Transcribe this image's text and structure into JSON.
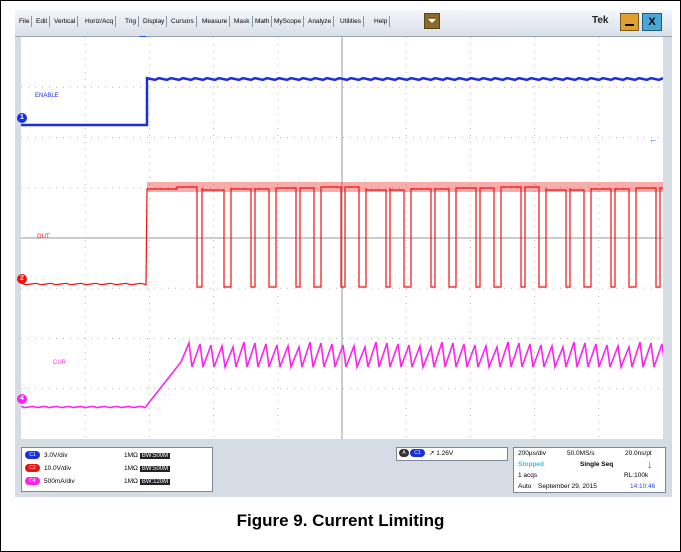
{
  "menu": {
    "items": [
      "File",
      "Edit",
      "Vertical",
      "Horiz/Acq",
      "Trig",
      "Display",
      "Cursors",
      "Measure",
      "Mask",
      "Math",
      "MyScope",
      "Analyze",
      "Utilities",
      "Help"
    ]
  },
  "brand": "Tek",
  "window": {
    "close_label": "X"
  },
  "channels": {
    "ch1": {
      "marker": "1",
      "label": "ENABLE",
      "color": "#1a2fe0"
    },
    "ch2": {
      "marker": "2",
      "label": "OUT",
      "color": "#ee1111"
    },
    "ch4": {
      "marker": "4",
      "label": "CUR",
      "color": "#ff22ee"
    }
  },
  "scale_panel": {
    "rows": [
      {
        "badge": "C1",
        "scale": "3.0V/div",
        "impedance": "1MΩ",
        "bw": "BW:500M"
      },
      {
        "badge": "C2",
        "scale": "10.0V/div",
        "impedance": "1MΩ",
        "bw": "BW:500M"
      },
      {
        "badge": "C4",
        "scale": "500mA/div",
        "impedance": "1MΩ",
        "bw": "BW:120M"
      }
    ]
  },
  "trigger": {
    "mode_badge": "A",
    "source_badge": "C1",
    "level": "1.26V"
  },
  "acquisition": {
    "timebase": "200µs/div",
    "sample_rate": "50.0MS/s",
    "resolution": "20.0ns/pt",
    "state": "Stopped",
    "seq_mode": "Single Seq",
    "acqs": "1 acqs",
    "record_length": "RL:100k",
    "trigger_mode": "Auto",
    "date": "September 29, 2015",
    "time": "14:10:46"
  },
  "caption": "Figure 9. Current Limiting"
}
